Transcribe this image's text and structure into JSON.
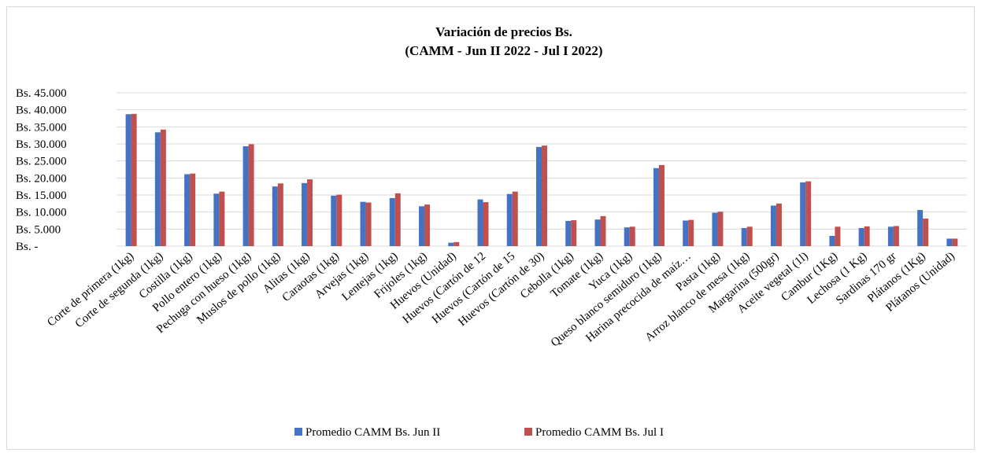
{
  "chart_data": {
    "type": "bar",
    "title": "Variación de precios Bs.",
    "subtitle": "(CAMM - Jun II 2022 - Jul I 2022)",
    "categories": [
      "Corte de primera (1kg)",
      "Corte de segunda (1kg)",
      "Costilla (1kg)",
      "Pollo entero (1kg)",
      "Pechuga con hueso (1kg)",
      "Muslos de pollo (1kg)",
      "Alitas (1kg)",
      "Caraotas (1kg)",
      "Arvejas (1kg)",
      "Lentejas (1kg)",
      "Frijoles (1kg)",
      "Huevos (Unidad)",
      "Huevos (Cartón de 12",
      "Huevos (Cartón de 15",
      "Huevos (Cartón de 30)",
      "Cebolla (1kg)",
      "Tomate (1kg)",
      "Yuca (1kg)",
      "Queso blanco semiduro (1kg)",
      "Harina precocida de maíz…",
      "Pasta (1kg)",
      "Arroz blanco de mesa (1kg)",
      "Margarina (500gr)",
      "Aceite vegetal (1l)",
      "Cambur (1Kg)",
      "Lechosa (1 Kg)",
      "Sardinas 170 gr",
      "Plátanos (1Kg)",
      "Plátanos (Unidad)"
    ],
    "series": [
      {
        "name": "Promedio CAMM Bs. Jun II",
        "color": "#4472c4",
        "values": [
          38700,
          33400,
          21100,
          15400,
          29300,
          17500,
          18500,
          14800,
          13000,
          14100,
          11700,
          1000,
          13700,
          15300,
          29100,
          7400,
          7800,
          5500,
          22900,
          7500,
          9800,
          5300,
          11900,
          18700,
          3000,
          5300,
          5700,
          10600,
          2200
        ]
      },
      {
        "name": "Promedio CAMM Bs. Jul I",
        "color": "#c0504d",
        "values": [
          38800,
          34200,
          21300,
          16000,
          29900,
          18400,
          19600,
          15100,
          12800,
          15500,
          12200,
          1200,
          12900,
          16000,
          29500,
          7600,
          8800,
          5700,
          23800,
          7700,
          10100,
          5700,
          12500,
          19000,
          5700,
          5800,
          5900,
          8100,
          2200
        ]
      }
    ],
    "ylim": [
      0,
      45000
    ],
    "yticks": [
      {
        "value": 0,
        "label": "Bs. -"
      },
      {
        "value": 5000,
        "label": "Bs. 5.000"
      },
      {
        "value": 10000,
        "label": "Bs. 10.000"
      },
      {
        "value": 15000,
        "label": "Bs. 15.000"
      },
      {
        "value": 20000,
        "label": "Bs. 20.000"
      },
      {
        "value": 25000,
        "label": "Bs. 25.000"
      },
      {
        "value": 30000,
        "label": "Bs. 30.000"
      },
      {
        "value": 35000,
        "label": "Bs. 35.000"
      },
      {
        "value": 40000,
        "label": "Bs. 40.000"
      },
      {
        "value": 45000,
        "label": "Bs. 45.000"
      }
    ],
    "grid": true,
    "legend": "bottom"
  }
}
